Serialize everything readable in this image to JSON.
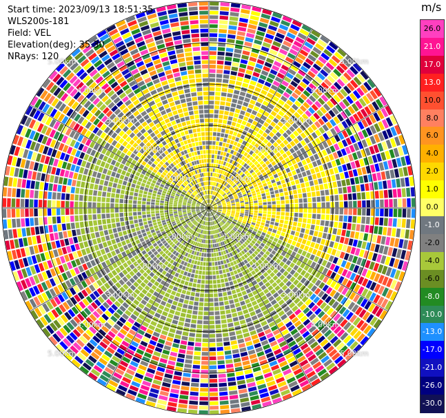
{
  "info": {
    "start_time": "Start time: 2023/09/13 18:51:35",
    "instrument": "WLS200s-181",
    "field": "Field: VEL",
    "elevation": "Elevation(deg): 35.30",
    "nrays": "NRays: 120"
  },
  "colorbar": {
    "unit": "m/s",
    "ticks": [
      "26.0",
      "21.0",
      "17.0",
      "13.0",
      "10.0",
      "8.0",
      "6.0",
      "4.0",
      "2.0",
      "1.0",
      "0.0",
      "-1.0",
      "-2.0",
      "-4.0",
      "-6.0",
      "-8.0",
      "-10.0",
      "-13.0",
      "-17.0",
      "-21.0",
      "-26.0",
      "-30.0"
    ],
    "colors": [
      "#ff40c0",
      "#ff1493",
      "#e0003c",
      "#ff2020",
      "#ff5030",
      "#ff8060",
      "#ff9420",
      "#ffb000",
      "#ffd800",
      "#ffff00",
      "#ffff66",
      "#707880",
      "#808080",
      "#a8c83a",
      "#6b8e23",
      "#228b22",
      "#2e8b57",
      "#1e90ff",
      "#0000ff",
      "#1010c0",
      "#000080",
      "#111155"
    ]
  },
  "range_rings": {
    "labels": [
      "1.00km",
      "2.00km",
      "3.00km",
      "4.00km",
      "5.00km"
    ]
  }
}
